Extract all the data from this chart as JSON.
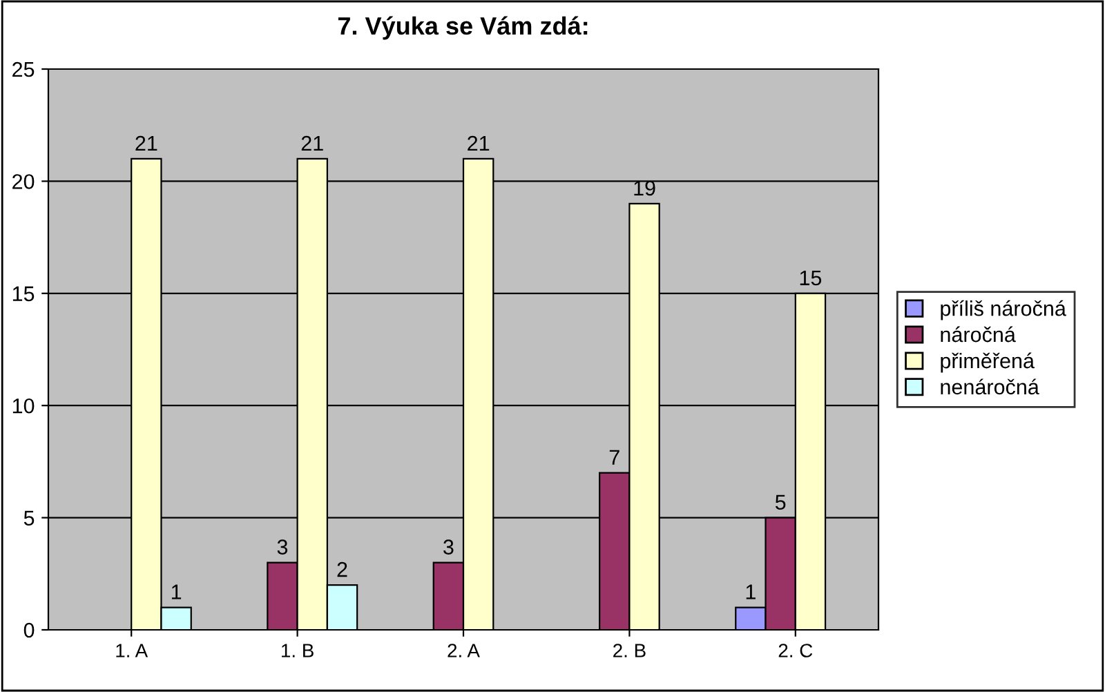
{
  "chart_data": {
    "type": "bar",
    "title": "7. Výuka se Vám zdá:",
    "categories": [
      "1. A",
      "1. B",
      "2. A",
      "2. B",
      "2. C"
    ],
    "series": [
      {
        "name": "příliš náročná",
        "color": "#9999ff",
        "values": [
          null,
          null,
          null,
          null,
          1
        ]
      },
      {
        "name": "náročná",
        "color": "#993366",
        "values": [
          null,
          3,
          3,
          7,
          5
        ]
      },
      {
        "name": "přiměřená",
        "color": "#ffffcc",
        "values": [
          21,
          21,
          21,
          19,
          15
        ]
      },
      {
        "name": "nenáročná",
        "color": "#ccffff",
        "values": [
          1,
          2,
          null,
          null,
          null
        ]
      }
    ],
    "ylim": [
      0,
      25
    ],
    "yticks": [
      0,
      5,
      10,
      15,
      20,
      25
    ],
    "grid": "y",
    "legend": "right",
    "data_labels": true
  }
}
